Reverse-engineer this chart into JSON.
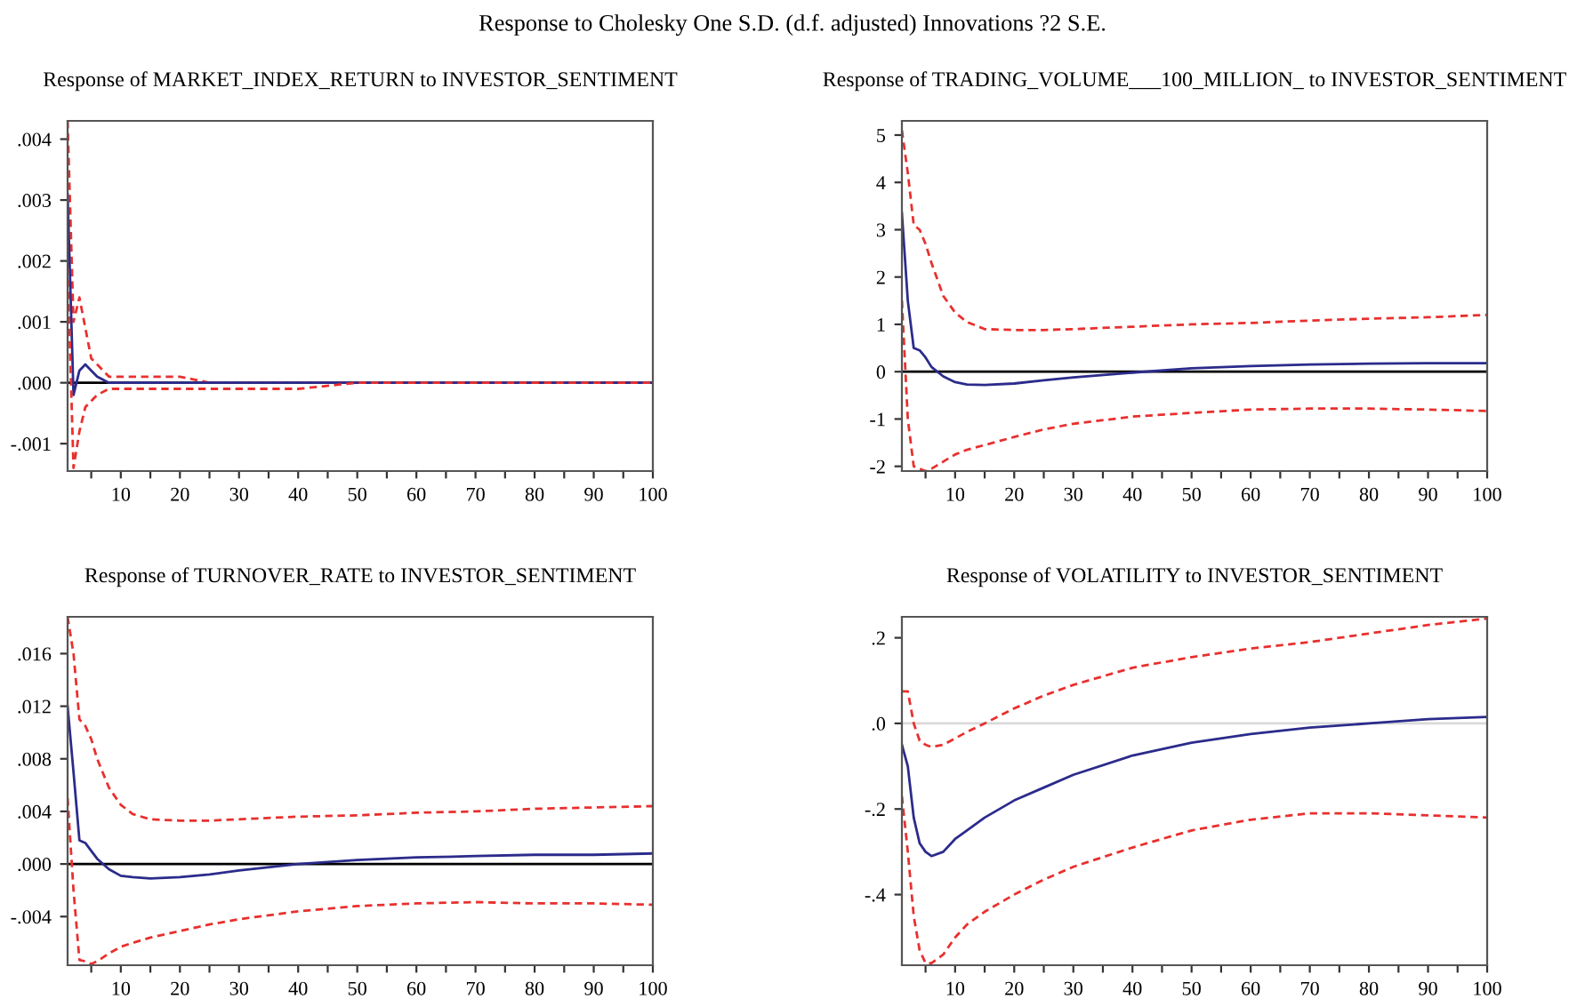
{
  "chart_data": [
    {
      "type": "line",
      "title": "Response of MARKET_INDEX_RETURN to INVESTOR_SENTIMENT",
      "annotations": [
        "Response to Cholesky One S.D. (d.f. adjusted) Innovations ?2 S.E."
      ],
      "x": [
        1,
        2,
        3,
        4,
        5,
        6,
        8,
        10,
        12,
        15,
        20,
        25,
        30,
        40,
        50,
        60,
        70,
        80,
        90,
        100
      ],
      "xlim": [
        1,
        100
      ],
      "xticks": [
        {
          "value": 5,
          "label": null
        },
        10,
        {
          "value": 15,
          "label": null
        },
        20,
        {
          "value": 25,
          "label": null
        },
        30,
        {
          "value": 35,
          "label": null
        },
        40,
        {
          "value": 45,
          "label": null
        },
        50,
        {
          "value": 55,
          "label": null
        },
        60,
        {
          "value": 65,
          "label": null
        },
        70,
        {
          "value": 75,
          "label": null
        },
        80,
        {
          "value": 85,
          "label": null
        },
        90,
        {
          "value": 95,
          "label": null
        },
        100
      ],
      "ylim": [
        -0.00145,
        0.0043
      ],
      "yticks": [
        {
          "value": -0.001,
          "label": "-.001"
        },
        {
          "value": 0,
          "label": ".000"
        },
        {
          "value": 0.001,
          "label": ".001"
        },
        {
          "value": 0.002,
          "label": ".002"
        },
        {
          "value": 0.003,
          "label": ".003"
        },
        {
          "value": 0.004,
          "label": ".004"
        }
      ],
      "grid": false,
      "marker": "none",
      "ref_lines": [
        {
          "axis": "y",
          "value": 0,
          "color": "#000000"
        }
      ],
      "series": [
        {
          "color": "#e8302e",
          "line_style": "dashed",
          "values": [
            0.0043,
            0.001,
            0.0014,
            0.0009,
            0.0004,
            0.0003,
            0.0001,
            0.0001,
            0.0001,
            0.0001,
            0.0001,
            0.0,
            0.0,
            0.0,
            0.0,
            0.0,
            0.0,
            0.0,
            0.0,
            0.0
          ]
        },
        {
          "color": "#2b2b8c",
          "line_style": "solid",
          "values": [
            0.0031,
            -0.0002,
            0.0002,
            0.0003,
            0.0002,
            0.0001,
            0.0,
            0.0,
            0.0,
            0.0,
            0.0,
            0.0,
            0.0,
            0.0,
            0.0,
            0.0,
            0.0,
            0.0,
            0.0,
            0.0
          ]
        },
        {
          "color": "#e8302e",
          "line_style": "dashed",
          "values": [
            0.0019,
            -0.0014,
            -0.0008,
            -0.0004,
            -0.0003,
            -0.0002,
            -0.0001,
            -0.0001,
            -0.0001,
            -0.0001,
            -0.0001,
            -0.0001,
            -0.0001,
            -0.0001,
            0.0,
            0.0,
            0.0,
            0.0,
            0.0,
            0.0
          ]
        }
      ]
    },
    {
      "type": "line",
      "title": "Response of TRADING_VOLUME___100_MILLION_ to INVESTOR_SENTIMENT",
      "x": [
        1,
        2,
        3,
        4,
        5,
        6,
        8,
        10,
        12,
        15,
        20,
        25,
        30,
        40,
        50,
        60,
        70,
        80,
        90,
        100
      ],
      "xlim": [
        1,
        100
      ],
      "xticks": [
        {
          "value": 5,
          "label": null
        },
        10,
        {
          "value": 15,
          "label": null
        },
        20,
        {
          "value": 25,
          "label": null
        },
        30,
        {
          "value": 35,
          "label": null
        },
        40,
        {
          "value": 45,
          "label": null
        },
        50,
        {
          "value": 55,
          "label": null
        },
        60,
        {
          "value": 65,
          "label": null
        },
        70,
        {
          "value": 75,
          "label": null
        },
        80,
        {
          "value": 85,
          "label": null
        },
        90,
        {
          "value": 95,
          "label": null
        },
        100
      ],
      "ylim": [
        -2.1,
        5.3
      ],
      "yticks": [
        -2,
        -1,
        0,
        1,
        2,
        3,
        4,
        5
      ],
      "grid": false,
      "marker": "none",
      "ref_lines": [
        {
          "axis": "y",
          "value": 0,
          "color": "#000000"
        }
      ],
      "series": [
        {
          "color": "#e8302e",
          "line_style": "dashed",
          "values": [
            5.1,
            4.2,
            3.1,
            3.0,
            2.7,
            2.3,
            1.6,
            1.25,
            1.05,
            0.9,
            0.88,
            0.88,
            0.9,
            0.95,
            1.0,
            1.03,
            1.08,
            1.12,
            1.15,
            1.2
          ]
        },
        {
          "color": "#2b2b8c",
          "line_style": "solid",
          "values": [
            3.35,
            1.5,
            0.5,
            0.45,
            0.3,
            0.1,
            -0.1,
            -0.22,
            -0.27,
            -0.28,
            -0.25,
            -0.18,
            -0.12,
            -0.02,
            0.07,
            0.12,
            0.15,
            0.17,
            0.18,
            0.18
          ]
        },
        {
          "color": "#e8302e",
          "line_style": "dashed",
          "values": [
            1.5,
            -1.0,
            -2.0,
            -2.05,
            -2.1,
            -2.05,
            -1.9,
            -1.75,
            -1.65,
            -1.55,
            -1.38,
            -1.22,
            -1.1,
            -0.95,
            -0.87,
            -0.8,
            -0.78,
            -0.78,
            -0.8,
            -0.83
          ]
        }
      ]
    },
    {
      "type": "line",
      "title": "Response of TURNOVER_RATE to INVESTOR_SENTIMENT",
      "x": [
        1,
        2,
        3,
        4,
        5,
        6,
        8,
        10,
        12,
        15,
        20,
        25,
        30,
        40,
        50,
        60,
        70,
        80,
        90,
        100
      ],
      "xlim": [
        1,
        100
      ],
      "xticks": [
        {
          "value": 5,
          "label": null
        },
        10,
        {
          "value": 15,
          "label": null
        },
        20,
        {
          "value": 25,
          "label": null
        },
        30,
        {
          "value": 35,
          "label": null
        },
        40,
        {
          "value": 45,
          "label": null
        },
        50,
        {
          "value": 55,
          "label": null
        },
        60,
        {
          "value": 65,
          "label": null
        },
        70,
        {
          "value": 75,
          "label": null
        },
        80,
        {
          "value": 85,
          "label": null
        },
        90,
        {
          "value": 95,
          "label": null
        },
        100
      ],
      "ylim": [
        -0.0077,
        0.0188
      ],
      "yticks": [
        {
          "value": -0.004,
          "label": "-.004"
        },
        {
          "value": 0,
          "label": ".000"
        },
        {
          "value": 0.004,
          "label": ".004"
        },
        {
          "value": 0.008,
          "label": ".008"
        },
        {
          "value": 0.012,
          "label": ".012"
        },
        {
          "value": 0.016,
          "label": ".016"
        }
      ],
      "grid": false,
      "marker": "none",
      "ref_lines": [
        {
          "axis": "y",
          "value": 0,
          "color": "#000000"
        }
      ],
      "series": [
        {
          "color": "#e8302e",
          "line_style": "dashed",
          "values": [
            0.0188,
            0.016,
            0.011,
            0.0105,
            0.0095,
            0.008,
            0.0058,
            0.0045,
            0.0038,
            0.0034,
            0.0033,
            0.0033,
            0.0034,
            0.0036,
            0.0037,
            0.0039,
            0.004,
            0.0042,
            0.0043,
            0.0044
          ]
        },
        {
          "color": "#2b2b8c",
          "line_style": "solid",
          "values": [
            0.012,
            0.007,
            0.0018,
            0.0016,
            0.001,
            0.0004,
            -0.0004,
            -0.0009,
            -0.001,
            -0.0011,
            -0.001,
            -0.0008,
            -0.0005,
            0.0,
            0.0003,
            0.0005,
            0.0006,
            0.0007,
            0.0007,
            0.0008
          ]
        },
        {
          "color": "#e8302e",
          "line_style": "dashed",
          "values": [
            0.005,
            -0.002,
            -0.0073,
            -0.0074,
            -0.0076,
            -0.0074,
            -0.0068,
            -0.0063,
            -0.006,
            -0.0056,
            -0.0051,
            -0.0046,
            -0.0042,
            -0.0036,
            -0.0032,
            -0.003,
            -0.0029,
            -0.003,
            -0.003,
            -0.0031
          ]
        }
      ]
    },
    {
      "type": "line",
      "title": "Response of VOLATILITY to INVESTOR_SENTIMENT",
      "x": [
        1,
        2,
        3,
        4,
        5,
        6,
        8,
        10,
        12,
        15,
        20,
        25,
        30,
        40,
        50,
        60,
        70,
        80,
        90,
        100
      ],
      "xlim": [
        1,
        100
      ],
      "xticks": [
        {
          "value": 5,
          "label": null
        },
        10,
        {
          "value": 15,
          "label": null
        },
        20,
        {
          "value": 25,
          "label": null
        },
        30,
        {
          "value": 35,
          "label": null
        },
        40,
        {
          "value": 45,
          "label": null
        },
        50,
        {
          "value": 55,
          "label": null
        },
        60,
        {
          "value": 65,
          "label": null
        },
        70,
        {
          "value": 75,
          "label": null
        },
        80,
        {
          "value": 85,
          "label": null
        },
        90,
        {
          "value": 95,
          "label": null
        },
        100
      ],
      "ylim": [
        -0.565,
        0.249
      ],
      "yticks": [
        {
          "value": -0.4,
          "label": "-.4"
        },
        {
          "value": -0.2,
          "label": "-.2"
        },
        {
          "value": 0,
          "label": ".0"
        },
        {
          "value": 0.2,
          "label": ".2"
        }
      ],
      "grid": false,
      "marker": "none",
      "ref_lines": [
        {
          "axis": "y",
          "value": 0,
          "color": "#d9d9d9"
        }
      ],
      "series": [
        {
          "color": "#e8302e",
          "line_style": "dashed",
          "values": [
            0.075,
            0.075,
            0.0,
            -0.04,
            -0.05,
            -0.055,
            -0.05,
            -0.035,
            -0.02,
            0.0,
            0.035,
            0.065,
            0.09,
            0.13,
            0.155,
            0.175,
            0.19,
            0.21,
            0.23,
            0.245
          ]
        },
        {
          "color": "#2b2b8c",
          "line_style": "solid",
          "values": [
            -0.05,
            -0.1,
            -0.22,
            -0.28,
            -0.3,
            -0.31,
            -0.3,
            -0.27,
            -0.25,
            -0.22,
            -0.18,
            -0.15,
            -0.12,
            -0.075,
            -0.045,
            -0.025,
            -0.01,
            0.0,
            0.01,
            0.015
          ]
        },
        {
          "color": "#e8302e",
          "line_style": "dashed",
          "values": [
            -0.17,
            -0.3,
            -0.45,
            -0.53,
            -0.56,
            -0.56,
            -0.54,
            -0.5,
            -0.47,
            -0.44,
            -0.4,
            -0.365,
            -0.335,
            -0.29,
            -0.25,
            -0.225,
            -0.21,
            -0.21,
            -0.215,
            -0.22
          ]
        }
      ]
    }
  ]
}
